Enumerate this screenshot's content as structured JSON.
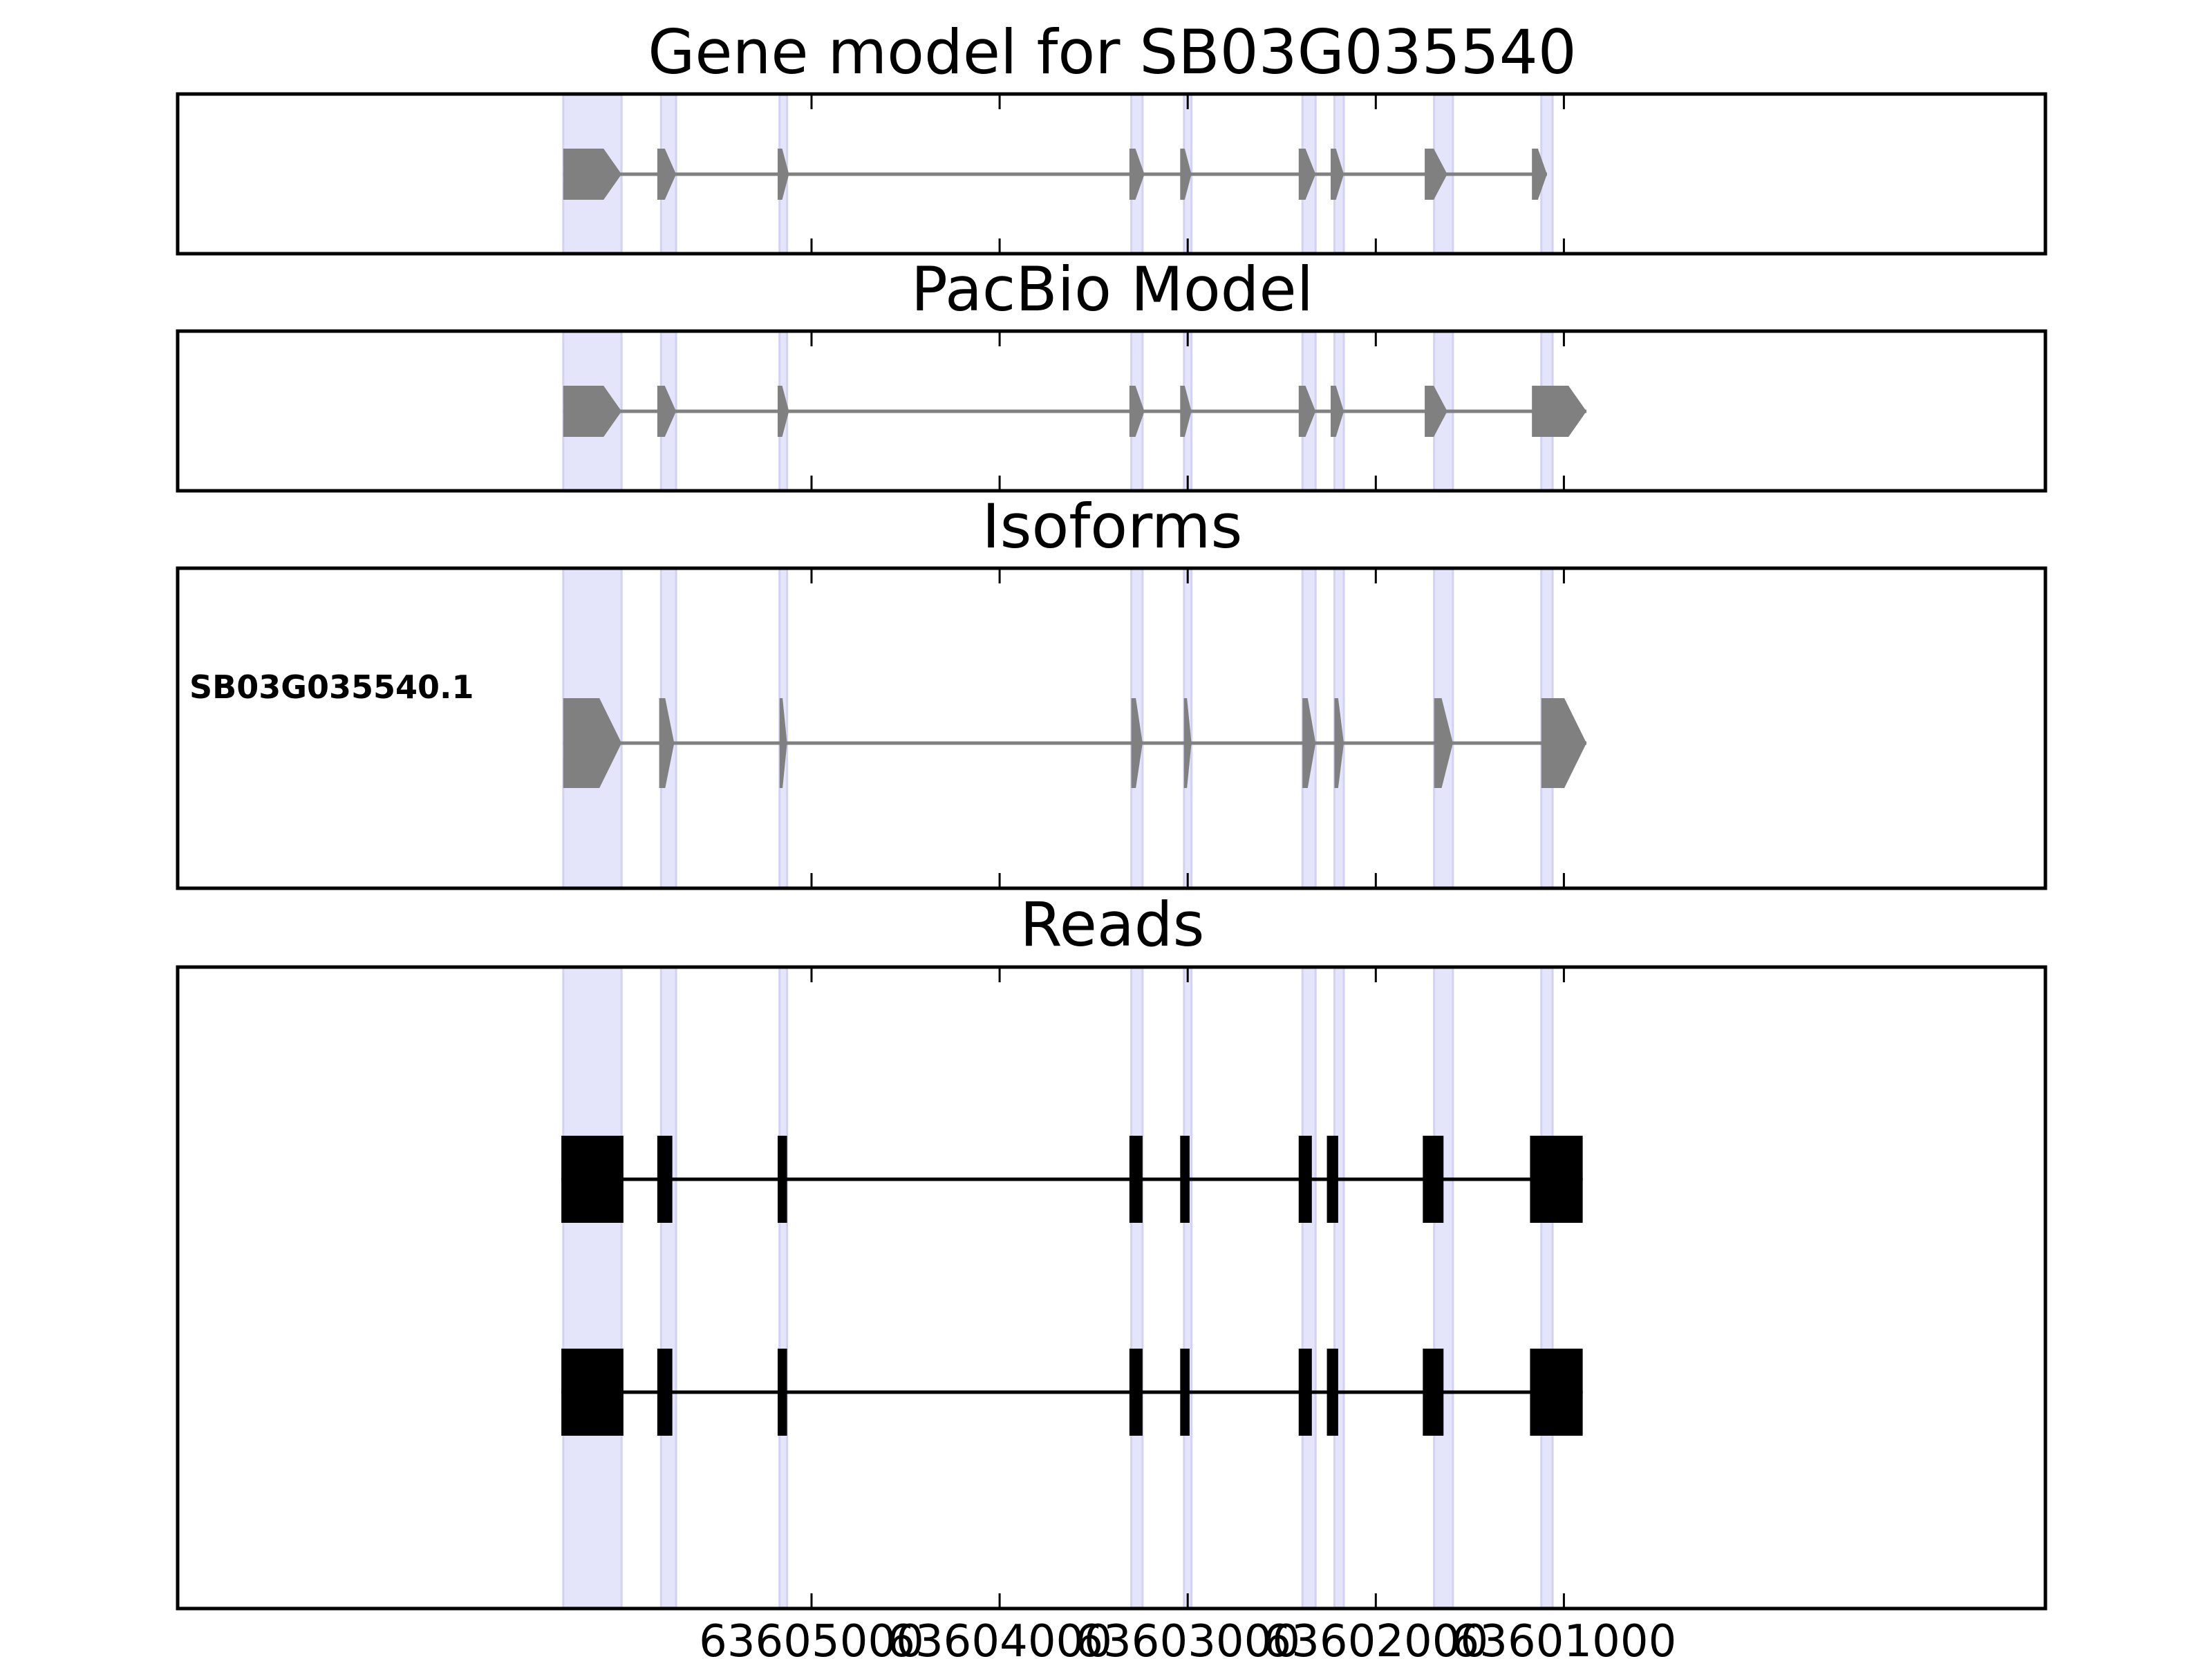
{
  "chart_data": {
    "type": "gene-structure",
    "x_reversed": true,
    "xlim": [
      63608370,
      63598440
    ],
    "x_ticks": [
      63605000,
      63604000,
      63603000,
      63602000,
      63601000
    ],
    "x_tick_labels": [
      "63605000",
      "63604000",
      "63603000",
      "63602000",
      "63601000"
    ],
    "highlight_color": "#e4e4fb",
    "exon_color": "#808080",
    "read_color": "#000000",
    "highlight_regions": [
      [
        63606320,
        63606010
      ],
      [
        63605800,
        63605720
      ],
      [
        63605170,
        63605130
      ],
      [
        63603300,
        63603240
      ],
      [
        63603020,
        63602980
      ],
      [
        63602390,
        63602320
      ],
      [
        63602220,
        63602170
      ],
      [
        63601690,
        63601590
      ],
      [
        63601120,
        63601060
      ]
    ],
    "panels": [
      {
        "title": "Gene model for SB03G035540",
        "kind": "model",
        "exons": [
          [
            63606320,
            63606010
          ],
          [
            63605820,
            63605720
          ],
          [
            63605180,
            63605120
          ],
          [
            63603310,
            63603230
          ],
          [
            63603040,
            63602980
          ],
          [
            63602410,
            63602320
          ],
          [
            63602240,
            63602170
          ],
          [
            63601740,
            63601620
          ],
          [
            63601170,
            63601090
          ]
        ]
      },
      {
        "title": "PacBio Model",
        "kind": "model",
        "exons": [
          [
            63606320,
            63606010
          ],
          [
            63605820,
            63605720
          ],
          [
            63605180,
            63605120
          ],
          [
            63603310,
            63603230
          ],
          [
            63603040,
            63602980
          ],
          [
            63602410,
            63602320
          ],
          [
            63602240,
            63602170
          ],
          [
            63601740,
            63601620
          ],
          [
            63601170,
            63600880
          ]
        ]
      },
      {
        "title": "Isoforms",
        "kind": "isoforms",
        "isoform_label": "SB03G035540.1",
        "exons": [
          [
            63606320,
            63606010
          ],
          [
            63605810,
            63605730
          ],
          [
            63605170,
            63605130
          ],
          [
            63603300,
            63603240
          ],
          [
            63603020,
            63602980
          ],
          [
            63602390,
            63602320
          ],
          [
            63602220,
            63602170
          ],
          [
            63601690,
            63601590
          ],
          [
            63601120,
            63600880
          ]
        ]
      },
      {
        "title": "Reads",
        "kind": "reads",
        "reads": [
          [
            [
              63606330,
              63606000
            ],
            [
              63605820,
              63605740
            ],
            [
              63605180,
              63605130
            ],
            [
              63603310,
              63603240
            ],
            [
              63603040,
              63602990
            ],
            [
              63602410,
              63602340
            ],
            [
              63602260,
              63602200
            ],
            [
              63601750,
              63601640
            ],
            [
              63601180,
              63600900
            ]
          ],
          [
            [
              63606330,
              63606000
            ],
            [
              63605820,
              63605740
            ],
            [
              63605180,
              63605130
            ],
            [
              63603310,
              63603240
            ],
            [
              63603040,
              63602990
            ],
            [
              63602410,
              63602340
            ],
            [
              63602260,
              63602200
            ],
            [
              63601750,
              63601640
            ],
            [
              63601180,
              63600900
            ]
          ]
        ]
      }
    ]
  }
}
